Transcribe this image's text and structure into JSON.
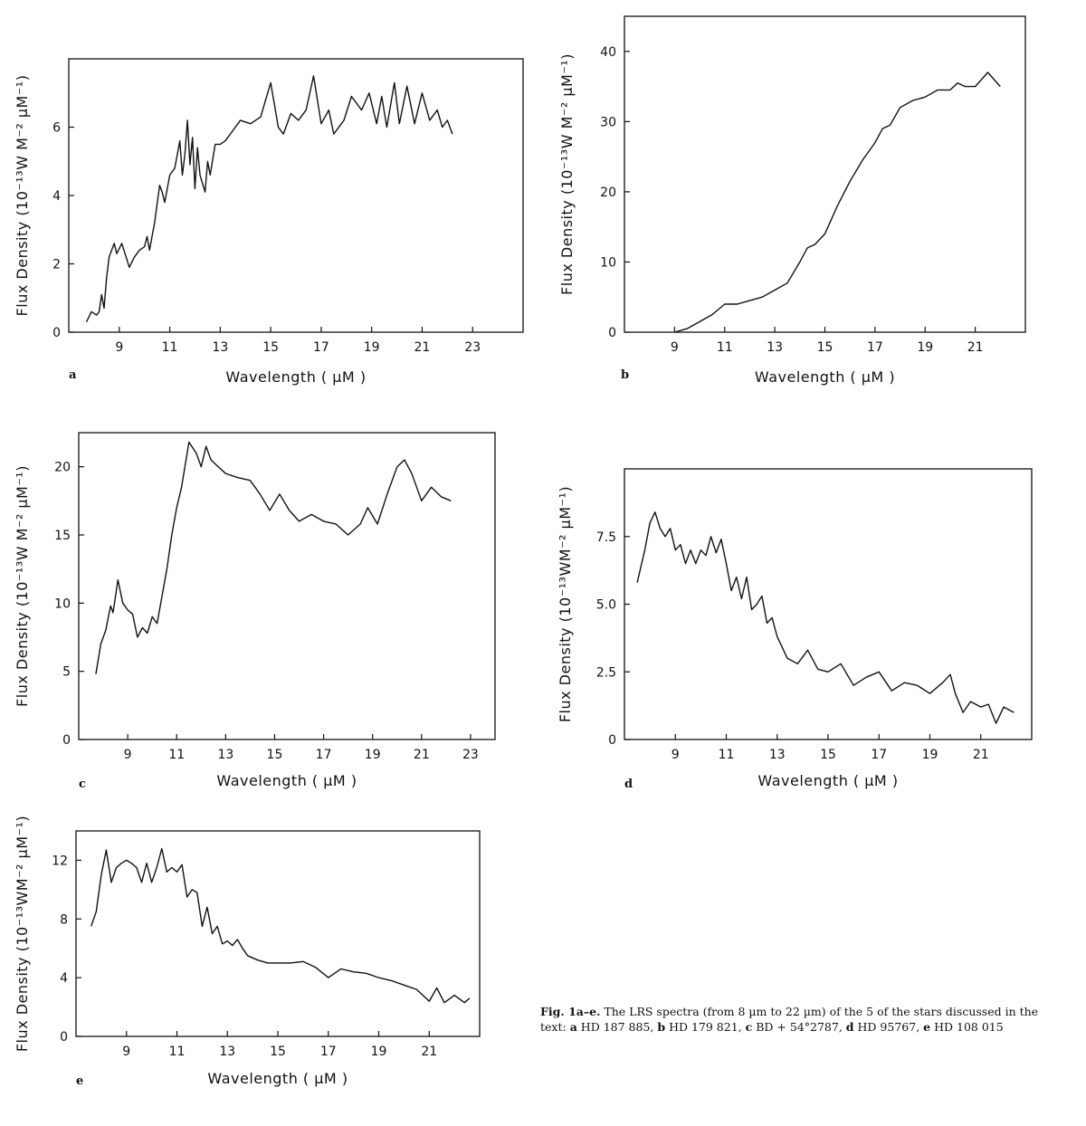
{
  "caption": {
    "fig_label": "Fig. 1a–e.",
    "text": "The LRS spectra (from 8 µm to 22 µm) of the 5 of the stars discussed in the text:",
    "items": [
      {
        "letter": "a",
        "star": "HD 187 885,"
      },
      {
        "letter": "b",
        "star": "HD 179 821,"
      },
      {
        "letter": "c",
        "star": "BD + 54°2787,"
      },
      {
        "letter": "d",
        "star": "HD 95767,"
      },
      {
        "letter": "e",
        "star": "HD 108 015"
      }
    ]
  },
  "chart_data": [
    {
      "type": "line",
      "panel": "a",
      "xlabel": "Wavelength ( µM )",
      "ylabel": "Flux Density (10⁻¹³W M⁻² µM⁻¹)",
      "xticks": [
        9,
        11,
        13,
        15,
        17,
        19,
        21,
        23
      ],
      "yticks": [
        0,
        2,
        4,
        6
      ],
      "xlim": [
        7,
        25
      ],
      "ylim": [
        0,
        8
      ],
      "x": [
        7.7,
        7.9,
        8.1,
        8.2,
        8.3,
        8.4,
        8.5,
        8.6,
        8.8,
        8.9,
        9.1,
        9.4,
        9.6,
        9.8,
        10.0,
        10.1,
        10.2,
        10.4,
        10.6,
        10.7,
        10.8,
        11.0,
        11.2,
        11.4,
        11.5,
        11.6,
        11.7,
        11.8,
        11.9,
        12.0,
        12.1,
        12.2,
        12.4,
        12.5,
        12.6,
        12.8,
        13.0,
        13.2,
        13.4,
        13.8,
        14.2,
        14.6,
        15.0,
        15.3,
        15.5,
        15.8,
        16.1,
        16.4,
        16.7,
        17.0,
        17.3,
        17.5,
        17.9,
        18.2,
        18.6,
        18.9,
        19.2,
        19.4,
        19.6,
        19.9,
        20.1,
        20.4,
        20.7,
        21.0,
        21.3,
        21.6,
        21.8,
        22.0,
        22.2
      ],
      "y": [
        0.3,
        0.6,
        0.5,
        0.6,
        1.1,
        0.7,
        1.6,
        2.2,
        2.6,
        2.3,
        2.6,
        1.9,
        2.2,
        2.4,
        2.5,
        2.8,
        2.4,
        3.2,
        4.3,
        4.1,
        3.8,
        4.6,
        4.8,
        5.6,
        4.6,
        5.2,
        6.2,
        4.9,
        5.7,
        4.2,
        5.4,
        4.6,
        4.1,
        5.0,
        4.6,
        5.5,
        5.5,
        5.6,
        5.8,
        6.2,
        6.1,
        6.3,
        7.3,
        6.0,
        5.8,
        6.4,
        6.2,
        6.5,
        7.5,
        6.1,
        6.5,
        5.8,
        6.2,
        6.9,
        6.5,
        7.0,
        6.1,
        6.9,
        6.0,
        7.3,
        6.1,
        7.2,
        6.1,
        7.0,
        6.2,
        6.5,
        6.0,
        6.2,
        5.8
      ]
    },
    {
      "type": "line",
      "panel": "b",
      "xlabel": "Wavelength ( µM )",
      "ylabel": "Flux Density (10⁻¹³W M⁻² µM⁻¹)",
      "xticks": [
        9,
        11,
        13,
        15,
        17,
        19,
        21
      ],
      "yticks": [
        0,
        10,
        20,
        30,
        40
      ],
      "xlim": [
        7,
        23
      ],
      "ylim": [
        0,
        45
      ],
      "x": [
        9.0,
        9.5,
        10.0,
        10.5,
        11.0,
        11.5,
        12.0,
        12.5,
        13.0,
        13.5,
        14.0,
        14.3,
        14.6,
        15.0,
        15.5,
        16.0,
        16.5,
        17.0,
        17.3,
        17.6,
        18.0,
        18.5,
        19.0,
        19.5,
        20.0,
        20.3,
        20.6,
        21.0,
        21.5,
        22.0
      ],
      "y": [
        0,
        0.5,
        1.5,
        2.5,
        4.0,
        4.0,
        4.5,
        5.0,
        6.0,
        7.0,
        10.0,
        12.0,
        12.5,
        14.0,
        18.0,
        21.5,
        24.5,
        27.0,
        29.0,
        29.5,
        32.0,
        33.0,
        33.5,
        34.5,
        34.5,
        35.5,
        35.0,
        35.0,
        37.0,
        35.0
      ]
    },
    {
      "type": "line",
      "panel": "c",
      "xlabel": "Wavelength ( µM )",
      "ylabel": "Flux Density (10⁻¹³W M⁻² µM⁻¹)",
      "xticks": [
        9,
        11,
        13,
        15,
        17,
        19,
        21,
        23
      ],
      "yticks": [
        0,
        5,
        10,
        15,
        20
      ],
      "xlim": [
        7,
        24
      ],
      "ylim": [
        0,
        22.5
      ],
      "x": [
        7.7,
        7.9,
        8.1,
        8.3,
        8.4,
        8.6,
        8.8,
        9.0,
        9.2,
        9.4,
        9.6,
        9.8,
        10.0,
        10.2,
        10.4,
        10.6,
        10.8,
        11.0,
        11.2,
        11.5,
        11.8,
        12.0,
        12.2,
        12.4,
        12.7,
        13.0,
        13.5,
        14.0,
        14.4,
        14.8,
        15.2,
        15.6,
        16.0,
        16.5,
        17.0,
        17.5,
        18.0,
        18.5,
        18.8,
        19.2,
        19.6,
        20.0,
        20.3,
        20.6,
        21.0,
        21.4,
        21.8,
        22.2
      ],
      "y": [
        4.8,
        7.0,
        8.0,
        9.8,
        9.3,
        11.7,
        10.0,
        9.5,
        9.2,
        7.5,
        8.2,
        7.8,
        9.0,
        8.5,
        10.5,
        12.5,
        15.0,
        17.0,
        18.5,
        21.8,
        21.0,
        20.0,
        21.5,
        20.5,
        20.0,
        19.5,
        19.2,
        19.0,
        18.0,
        16.8,
        18.0,
        16.8,
        16.0,
        16.5,
        16.0,
        15.8,
        15.0,
        15.8,
        17.0,
        15.8,
        18.0,
        20.0,
        20.5,
        19.5,
        17.5,
        18.5,
        17.8,
        17.5
      ]
    },
    {
      "type": "line",
      "panel": "d",
      "xlabel": "Wavelength  ( µM )",
      "ylabel": "Flux Density (10⁻¹³WM⁻² µM⁻¹)",
      "xticks": [
        9,
        11,
        13,
        15,
        17,
        19,
        21
      ],
      "yticks": [
        "0",
        "2.5",
        "5.0",
        "7.5"
      ],
      "xlim": [
        7,
        23
      ],
      "ylim": [
        0,
        10
      ],
      "x": [
        7.5,
        7.8,
        8.0,
        8.2,
        8.4,
        8.6,
        8.8,
        9.0,
        9.2,
        9.4,
        9.6,
        9.8,
        10.0,
        10.2,
        10.4,
        10.6,
        10.8,
        11.0,
        11.2,
        11.4,
        11.6,
        11.8,
        12.0,
        12.2,
        12.4,
        12.6,
        12.8,
        13.0,
        13.4,
        13.8,
        14.2,
        14.6,
        15.0,
        15.5,
        16.0,
        16.5,
        17.0,
        17.5,
        18.0,
        18.5,
        19.0,
        19.5,
        19.8,
        20.0,
        20.3,
        20.6,
        21.0,
        21.3,
        21.6,
        21.9,
        22.3
      ],
      "y": [
        5.8,
        7.0,
        8.0,
        8.4,
        7.8,
        7.5,
        7.8,
        7.0,
        7.2,
        6.5,
        7.0,
        6.5,
        7.0,
        6.8,
        7.5,
        6.9,
        7.4,
        6.5,
        5.5,
        6.0,
        5.2,
        6.0,
        4.8,
        5.0,
        5.3,
        4.3,
        4.5,
        3.8,
        3.0,
        2.8,
        3.3,
        2.6,
        2.5,
        2.8,
        2.0,
        2.3,
        2.5,
        1.8,
        2.1,
        2.0,
        1.7,
        2.1,
        2.4,
        1.7,
        1.0,
        1.4,
        1.2,
        1.3,
        0.6,
        1.2,
        1.0
      ]
    },
    {
      "type": "line",
      "panel": "e",
      "xlabel": "Wavelength  ( µM )",
      "ylabel": "Flux Density (10⁻¹³WM⁻² µM⁻¹)",
      "xticks": [
        9,
        11,
        13,
        15,
        17,
        19,
        21
      ],
      "yticks": [
        0,
        4,
        8,
        12
      ],
      "xlim": [
        7,
        23
      ],
      "ylim": [
        0,
        14
      ],
      "x": [
        7.6,
        7.8,
        8.0,
        8.2,
        8.4,
        8.6,
        8.8,
        9.0,
        9.2,
        9.4,
        9.6,
        9.8,
        10.0,
        10.2,
        10.4,
        10.6,
        10.8,
        11.0,
        11.2,
        11.4,
        11.6,
        11.8,
        12.0,
        12.2,
        12.4,
        12.6,
        12.8,
        13.0,
        13.2,
        13.4,
        13.6,
        13.8,
        14.2,
        14.6,
        15.0,
        15.5,
        16.0,
        16.5,
        17.0,
        17.5,
        18.0,
        18.5,
        19.0,
        19.5,
        20.0,
        20.5,
        21.0,
        21.3,
        21.6,
        22.0,
        22.4,
        22.6
      ],
      "y": [
        7.5,
        8.5,
        11.0,
        12.7,
        10.5,
        11.5,
        11.8,
        12.0,
        11.8,
        11.5,
        10.5,
        11.8,
        10.5,
        11.5,
        12.8,
        11.2,
        11.5,
        11.2,
        11.7,
        9.5,
        10.0,
        9.8,
        7.5,
        8.8,
        7.0,
        7.5,
        6.3,
        6.5,
        6.2,
        6.6,
        6.0,
        5.5,
        5.2,
        5.0,
        5.0,
        5.0,
        5.1,
        4.7,
        4.0,
        4.6,
        4.4,
        4.3,
        4.0,
        3.8,
        3.5,
        3.2,
        2.4,
        3.3,
        2.3,
        2.8,
        2.3,
        2.6
      ]
    }
  ]
}
